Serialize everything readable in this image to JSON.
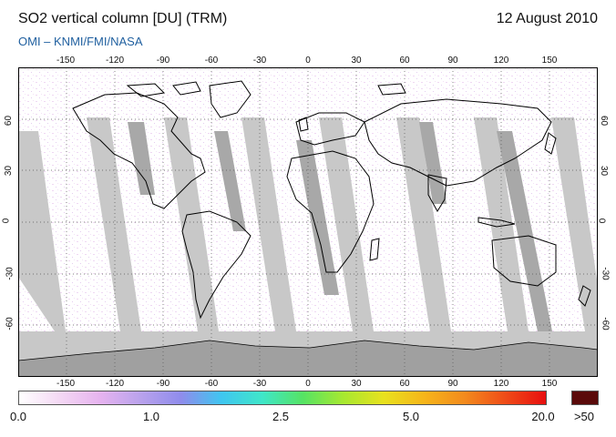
{
  "header": {
    "title": "SO2 vertical column [DU] (TRM)",
    "date": "12 August 2010",
    "credit": "OMI  –  KNMI/FMI/NASA"
  },
  "map": {
    "lon_ticks": [
      "-150",
      "-120",
      "-90",
      "-60",
      "-30",
      "0",
      "30",
      "60",
      "90",
      "120",
      "150"
    ],
    "lat_ticks": [
      "60",
      "30",
      "0",
      "-30",
      "-60"
    ],
    "land_outline_color": "#000000",
    "no_data_color": "#c8c8c8",
    "overlap_color": "#a8a8a8",
    "antarctica_color": "#a0a0a0"
  },
  "colorbar": {
    "labels": [
      "0.0",
      "1.0",
      "2.5",
      "5.0",
      "20.0"
    ],
    "max_label": ">50",
    "colors": [
      "#ffffff",
      "#f4d8f4",
      "#e6b3ef",
      "#b9a2ec",
      "#8f8cec",
      "#3fc6f0",
      "#3fe6c9",
      "#55e364",
      "#a7e830",
      "#e8e11e",
      "#f6b51a",
      "#f38a1d",
      "#ef4c18",
      "#e80f0f"
    ],
    "max_color": "#5a0a0a"
  }
}
